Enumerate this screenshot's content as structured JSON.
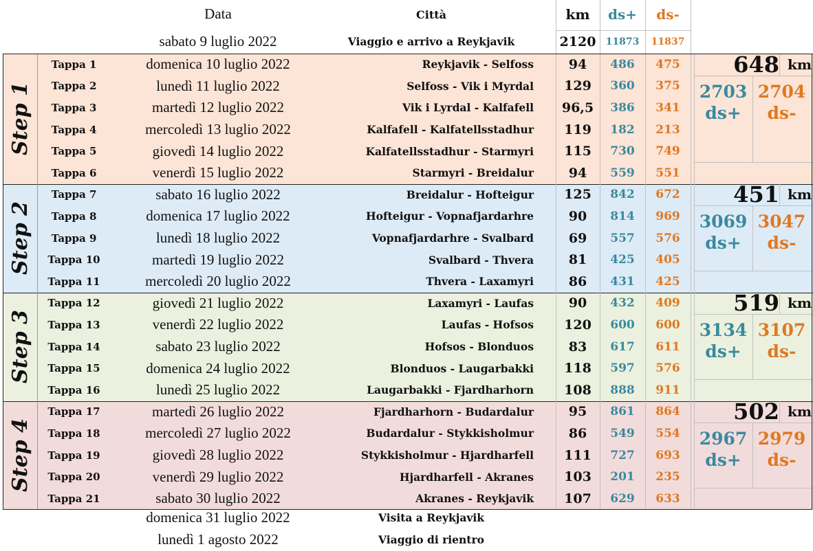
{
  "header": {
    "data": "Data",
    "citta": "Città",
    "km": "km",
    "dsp": "ds+",
    "dsm": "ds-"
  },
  "arrival": {
    "date": "sabato 9 luglio 2022",
    "route": "Viaggio e arrivo a Reykjavik",
    "km": "2120",
    "dsp": "11873",
    "dsm": "11837"
  },
  "steps": [
    {
      "label": "Step 1",
      "km": "648",
      "km_unit": "km",
      "dsp": "2703",
      "dsm": "2704",
      "dsp_label": "ds+",
      "dsm_label": "ds-",
      "color": "#fce4d6",
      "rows": [
        {
          "tappa": "Tappa 1",
          "date": "domenica 10 luglio 2022",
          "route": "Reykjavik - Selfoss",
          "km": "94",
          "dsp": "486",
          "dsm": "475"
        },
        {
          "tappa": "Tappa 2",
          "date": "lunedì 11 luglio 2022",
          "route": "Selfoss - Vik i Myrdal",
          "km": "129",
          "dsp": "360",
          "dsm": "375"
        },
        {
          "tappa": "Tappa 3",
          "date": "martedì 12 luglio 2022",
          "route": "Vik i Lyrdal - Kalfafell",
          "km": "96,5",
          "dsp": "386",
          "dsm": "341"
        },
        {
          "tappa": "Tappa 4",
          "date": "mercoledì 13 luglio 2022",
          "route": "Kalfafell - Kalfatellsstadhur",
          "km": "119",
          "dsp": "182",
          "dsm": "213"
        },
        {
          "tappa": "Tappa 5",
          "date": "giovedì 14 luglio 2022",
          "route": "Kalfatellsstadhur - Starmyri",
          "km": "115",
          "dsp": "730",
          "dsm": "749"
        },
        {
          "tappa": "Tappa 6",
          "date": "venerdì 15 luglio 2022",
          "route": "Starmyri - Breidalur",
          "km": "94",
          "dsp": "559",
          "dsm": "551"
        }
      ]
    },
    {
      "label": "Step 2",
      "km": "451",
      "km_unit": "km",
      "dsp": "3069",
      "dsm": "3047",
      "dsp_label": "ds+",
      "dsm_label": "ds-",
      "color": "#ddebf7",
      "rows": [
        {
          "tappa": "Tappa 7",
          "date": "sabato 16 luglio 2022",
          "route": "Breidalur - Hofteigur",
          "km": "125",
          "dsp": "842",
          "dsm": "672"
        },
        {
          "tappa": "Tappa 8",
          "date": "domenica 17 luglio 2022",
          "route": "Hofteigur - Vopnafjardarhre",
          "km": "90",
          "dsp": "814",
          "dsm": "969"
        },
        {
          "tappa": "Tappa 9",
          "date": "lunedì 18 luglio 2022",
          "route": "Vopnafjardarhre - Svalbard",
          "km": "69",
          "dsp": "557",
          "dsm": "576"
        },
        {
          "tappa": "Tappa 10",
          "date": "martedì 19 luglio 2022",
          "route": "Svalbard - Thvera",
          "km": "81",
          "dsp": "425",
          "dsm": "405"
        },
        {
          "tappa": "Tappa 11",
          "date": "mercoledì 20 luglio 2022",
          "route": "Thvera - Laxamyri",
          "km": "86",
          "dsp": "431",
          "dsm": "425"
        }
      ]
    },
    {
      "label": "Step 3",
      "km": "519",
      "km_unit": "km",
      "dsp": "3134",
      "dsm": "3107",
      "dsp_label": "ds+",
      "dsm_label": "ds-",
      "color": "#ebf1de",
      "rows": [
        {
          "tappa": "Tappa 12",
          "date": "giovedì 21 luglio 2022",
          "route": "Laxamyri - Laufas",
          "km": "90",
          "dsp": "432",
          "dsm": "409"
        },
        {
          "tappa": "Tappa 13",
          "date": "venerdì 22 luglio 2022",
          "route": "Laufas - Hofsos",
          "km": "120",
          "dsp": "600",
          "dsm": "600"
        },
        {
          "tappa": "Tappa 14",
          "date": "sabato 23 luglio 2022",
          "route": "Hofsos - Blonduos",
          "km": "83",
          "dsp": "617",
          "dsm": "611"
        },
        {
          "tappa": "Tappa 15",
          "date": "domenica 24 luglio 2022",
          "route": "Blonduos - Laugarbakki",
          "km": "118",
          "dsp": "597",
          "dsm": "576"
        },
        {
          "tappa": "Tappa 16",
          "date": "lunedì 25 luglio 2022",
          "route": "Laugarbakki - Fjardharhorn",
          "km": "108",
          "dsp": "888",
          "dsm": "911"
        }
      ]
    },
    {
      "label": "Step 4",
      "km": "502",
      "km_unit": "km",
      "dsp": "2967",
      "dsm": "2979",
      "dsp_label": "ds+",
      "dsm_label": "ds-",
      "color": "#f2dcdb",
      "rows": [
        {
          "tappa": "Tappa 17",
          "date": "martedì 26 luglio 2022",
          "route": "Fjardharhorn - Budardalur",
          "km": "95",
          "dsp": "861",
          "dsm": "864"
        },
        {
          "tappa": "Tappa 18",
          "date": "mercoledì 27 luglio 2022",
          "route": "Budardalur - Stykkisholmur",
          "km": "86",
          "dsp": "549",
          "dsm": "554"
        },
        {
          "tappa": "Tappa 19",
          "date": "giovedì 28 luglio 2022",
          "route": "Stykkisholmur - Hjardharfell",
          "km": "111",
          "dsp": "727",
          "dsm": "693"
        },
        {
          "tappa": "Tappa 20",
          "date": "venerdì 29 luglio 2022",
          "route": "Hjardharfell - Akranes",
          "km": "103",
          "dsp": "201",
          "dsm": "235"
        },
        {
          "tappa": "Tappa 21",
          "date": "sabato 30 luglio 2022",
          "route": "Akranes - Reykjavik",
          "km": "107",
          "dsp": "629",
          "dsm": "633"
        }
      ]
    }
  ],
  "footer": [
    {
      "date": "domenica 31 luglio 2022",
      "route": "Visita a Reykjavik"
    },
    {
      "date": "lunedì 1 agosto 2022",
      "route": "Viaggio di rientro"
    }
  ],
  "colors": {
    "dsp": "#3a8a9e",
    "dsm": "#e07820",
    "border": "#c0c0c0",
    "outer": "#222222"
  }
}
